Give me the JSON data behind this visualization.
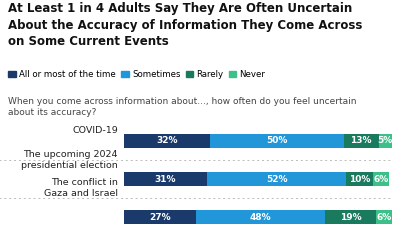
{
  "title": "At Least 1 in 4 Adults Say They Are Often Uncertain\nAbout the Accuracy of Information They Come Across\non Some Current Events",
  "subtitle": "When you come across information about..., how often do you feel uncertain\nabout its accuracy?",
  "categories": [
    "The conflict in\nGaza and Israel",
    "The upcoming 2024\npresidential election",
    "COVID-19"
  ],
  "legend_labels": [
    "All or most of the time",
    "Sometimes",
    "Rarely",
    "Never"
  ],
  "colors": [
    "#1a3a6b",
    "#2196d9",
    "#1a7a5e",
    "#3dbf8a"
  ],
  "data": [
    [
      32,
      50,
      13,
      5
    ],
    [
      31,
      52,
      10,
      6
    ],
    [
      27,
      48,
      19,
      6
    ]
  ],
  "background_color": "#ffffff",
  "title_fontsize": 8.5,
  "subtitle_fontsize": 6.5,
  "legend_fontsize": 6.2,
  "bar_label_fontsize": 6.5,
  "category_fontsize": 6.8
}
